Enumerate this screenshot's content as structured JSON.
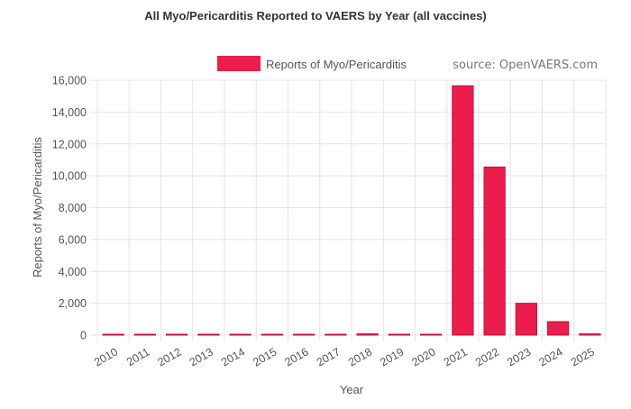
{
  "chart_data": {
    "type": "bar",
    "title": "All Myo/Pericarditis Reported to VAERS by Year (all vaccines)",
    "source": "source: OpenVAERS.com",
    "xlabel": "Year",
    "ylabel": "Reports of Myo/Pericarditis",
    "categories": [
      "2010",
      "2011",
      "2012",
      "2013",
      "2014",
      "2015",
      "2016",
      "2017",
      "2018",
      "2019",
      "2020",
      "2021",
      "2022",
      "2023",
      "2024",
      "2025"
    ],
    "series": [
      {
        "name": "Reports of Myo/Pericarditis",
        "color": "#ec1c4b",
        "values": [
          5,
          5,
          40,
          5,
          5,
          5,
          5,
          5,
          80,
          5,
          10,
          15650,
          10550,
          2000,
          850,
          80
        ]
      }
    ],
    "ylim": [
      0,
      16000
    ],
    "yticks": [
      0,
      2000,
      4000,
      6000,
      8000,
      10000,
      12000,
      14000,
      16000
    ],
    "ytick_labels": [
      "0",
      "2,000",
      "4,000",
      "6,000",
      "8,000",
      "10,000",
      "12,000",
      "14,000",
      "16,000"
    ],
    "grid": true,
    "legend_position": "top-center"
  }
}
